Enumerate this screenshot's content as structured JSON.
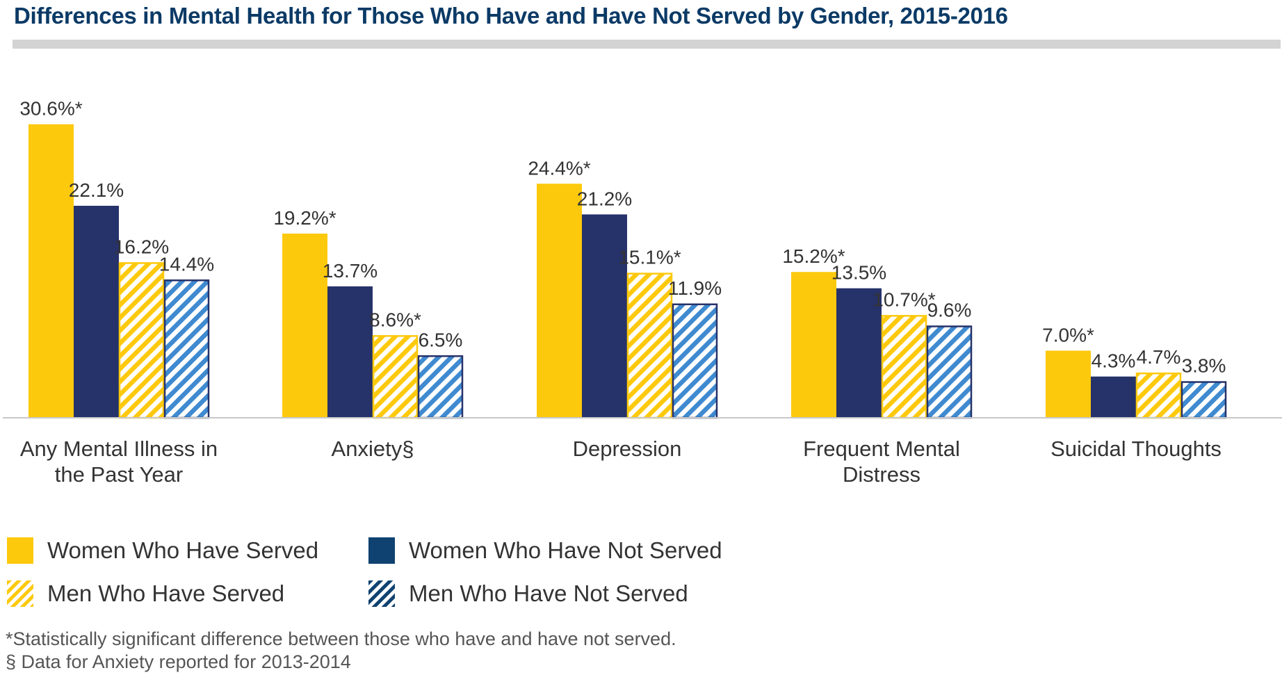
{
  "title": "Differences in Mental Health for Those Who Have and Have Not Served by Gender, 2015-2016",
  "colors": {
    "women_served": "#fdc90d",
    "women_not_served": "#26326a",
    "men_served_stripe": "#fdc90d",
    "men_not_served_stripe": "#3f8ad0",
    "legend_women_not_served": "#0f4271",
    "legend_men_not_served_stripe": "#0f4271"
  },
  "chart_data": {
    "type": "bar",
    "title": "Differences in Mental Health for Those Who Have and Have Not Served by Gender, 2015-2016",
    "xlabel": "",
    "ylabel": "",
    "ylim": [
      0,
      32
    ],
    "grid": false,
    "legend_placement": "bottom-left",
    "categories": [
      [
        "Any Mental Illness in",
        "the Past Year"
      ],
      [
        "Anxiety§"
      ],
      [
        "Depression"
      ],
      [
        "Frequent Mental",
        "Distress"
      ],
      [
        "Suicidal Thoughts"
      ]
    ],
    "series": [
      {
        "name": "Women Who Have Served",
        "values": [
          30.6,
          19.2,
          24.4,
          15.2,
          7.0
        ],
        "labels": [
          "30.6%*",
          "19.2%*",
          "24.4%*",
          "15.2%*",
          "7.0%*"
        ],
        "pattern": "solid",
        "color_key": "women_served"
      },
      {
        "name": "Women Who Have Not Served",
        "values": [
          22.1,
          13.7,
          21.2,
          13.5,
          4.3
        ],
        "labels": [
          "22.1%",
          "13.7%",
          "21.2%",
          "13.5%",
          "4.3%"
        ],
        "pattern": "solid",
        "color_key": "women_not_served"
      },
      {
        "name": "Men Who Have Served",
        "values": [
          16.2,
          8.6,
          15.1,
          10.7,
          4.7
        ],
        "labels": [
          "16.2%",
          "8.6%*",
          "15.1%*",
          "10.7%*",
          "4.7%"
        ],
        "pattern": "stripe",
        "color_key": "men_served_stripe"
      },
      {
        "name": "Men Who Have Not Served",
        "values": [
          14.4,
          6.5,
          11.9,
          9.6,
          3.8
        ],
        "labels": [
          "14.4%",
          "6.5%",
          "11.9%",
          "9.6%",
          "3.8%"
        ],
        "pattern": "stripe",
        "color_key": "men_not_served_stripe"
      }
    ]
  },
  "legend": [
    {
      "label": "Women Who Have Served",
      "pattern": "solid",
      "color_key": "women_served"
    },
    {
      "label": "Women Who Have Not Served",
      "pattern": "solid",
      "color_key": "legend_women_not_served"
    },
    {
      "label": "Men Who Have Served",
      "pattern": "stripe",
      "color_key": "men_served_stripe"
    },
    {
      "label": "Men Who Have Not Served",
      "pattern": "stripe",
      "color_key": "legend_men_not_served_stripe"
    }
  ],
  "footnotes": [
    "*Statistically significant difference between those who have and have not served.",
    "§ Data for Anxiety reported for 2013-2014"
  ]
}
